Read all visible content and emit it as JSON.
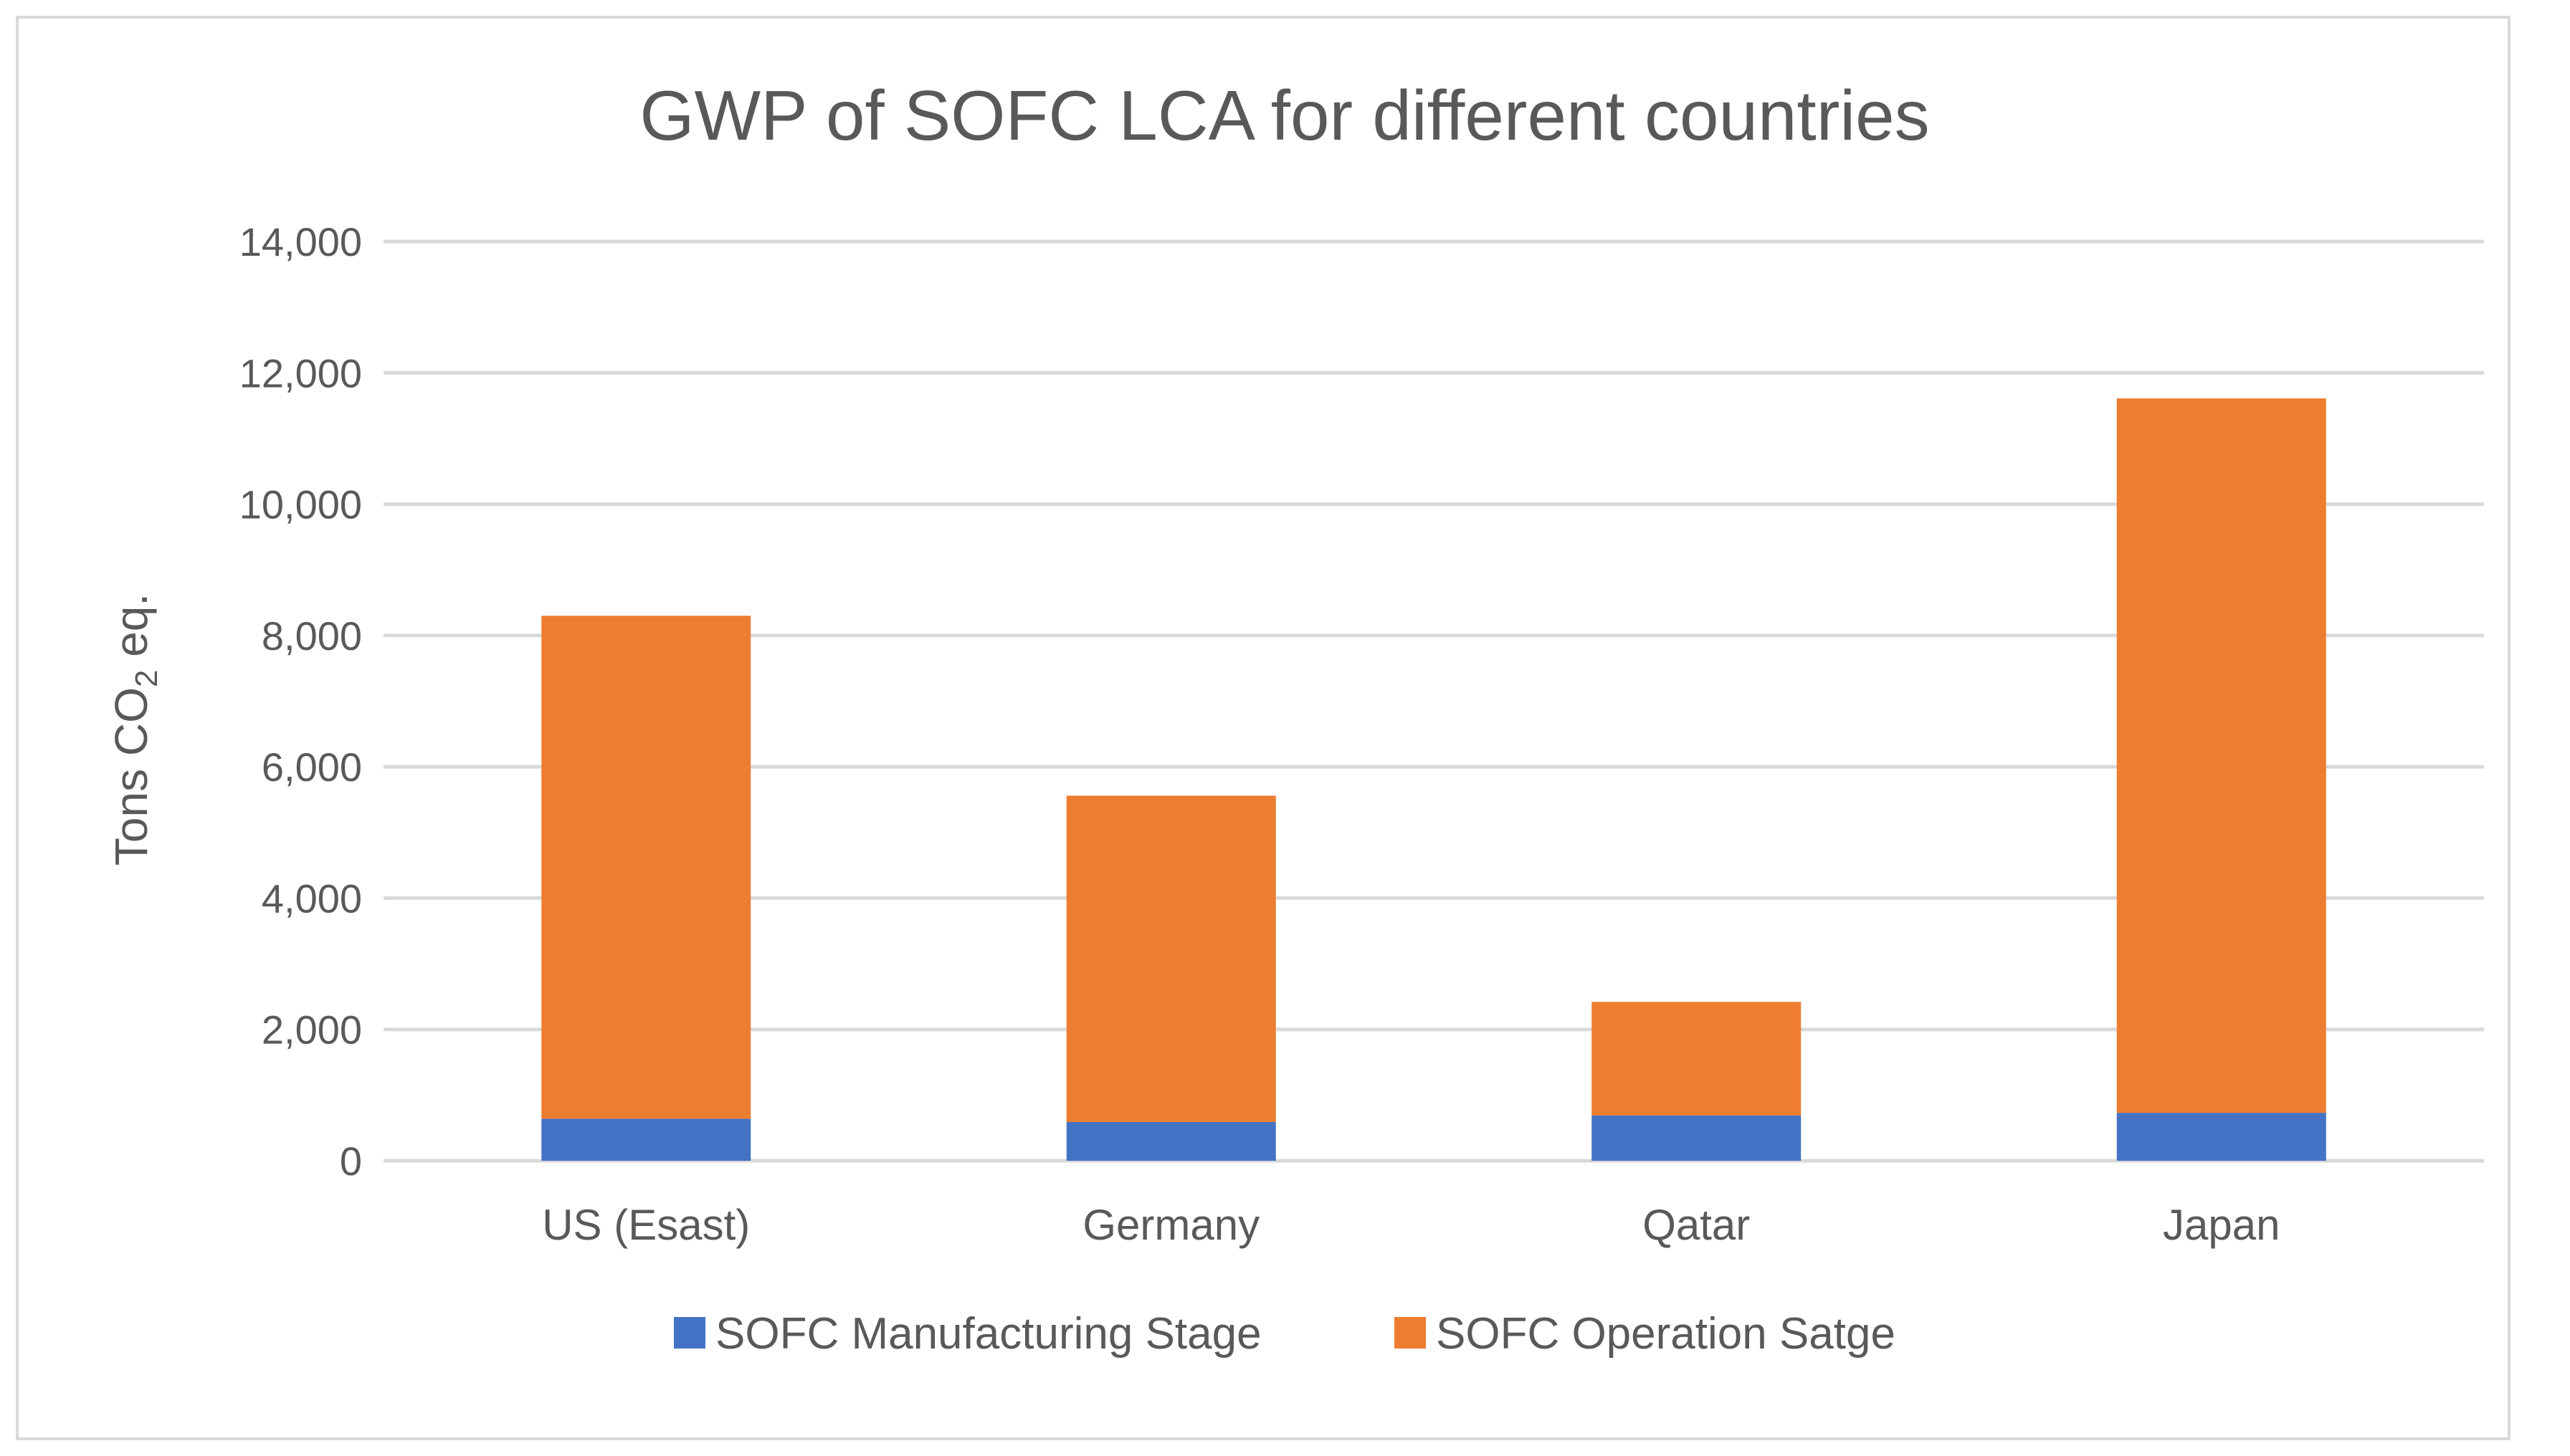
{
  "chart_data": {
    "type": "bar",
    "stacked": true,
    "title": "GWP of SOFC LCA for different countries",
    "ylabel": "Tons CO2 eq.",
    "ylabel_parts": {
      "prefix": "Tons CO",
      "sub": "2",
      "suffix": " eq."
    },
    "xlabel": "",
    "ylim": [
      0,
      14000
    ],
    "yticks": [
      0,
      2000,
      4000,
      6000,
      8000,
      10000,
      12000,
      14000
    ],
    "ytick_labels": [
      "0",
      "2,000",
      "4,000",
      "6,000",
      "8,000",
      "10,000",
      "12,000",
      "14,000"
    ],
    "categories": [
      "US (Esast)",
      "Germany",
      "Qatar",
      "Japan"
    ],
    "series": [
      {
        "name": "SOFC Manufacturing Stage",
        "color": "#4472c4",
        "values": [
          640,
          590,
          690,
          730
        ]
      },
      {
        "name": "SOFC Operation Satge",
        "color": "#ed7d31",
        "values": [
          7660,
          4970,
          1730,
          10880
        ]
      }
    ],
    "grid": true,
    "legend_position": "bottom"
  }
}
